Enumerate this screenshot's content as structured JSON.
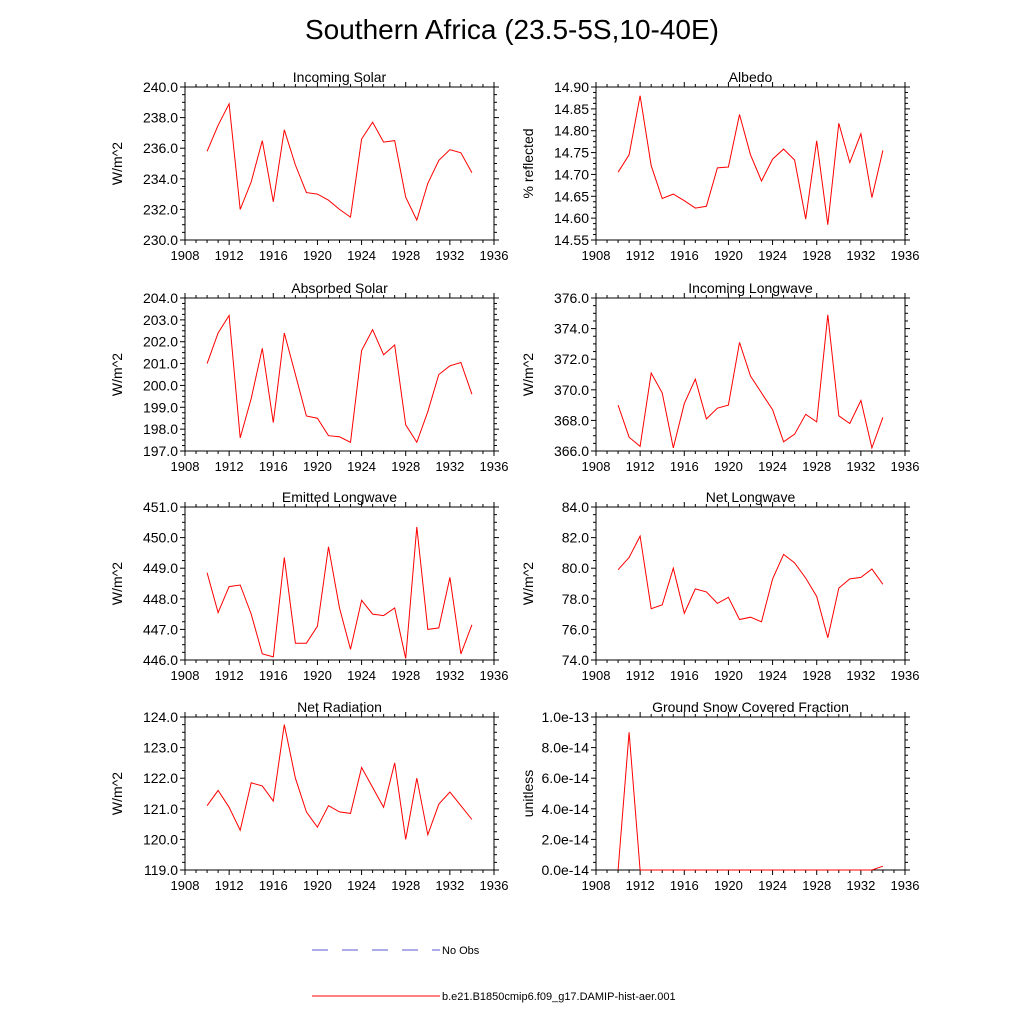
{
  "title": "Southern Africa (23.5-5S,10-40E)",
  "colors": {
    "model_line": "#ff0000",
    "obs_line": "#5a5ad2",
    "axis": "#000000"
  },
  "legend": {
    "obs_label": "No Obs",
    "model_label": "b.e21.B1850cmip6.f09_g17.DAMIP-hist-aer.001"
  },
  "chart_data": [
    {
      "type": "line",
      "title": "Incoming Solar",
      "ylabel": "W/m^2",
      "xlim": [
        1908,
        1936
      ],
      "ylim": [
        230,
        240
      ],
      "xticks": [
        1908,
        1912,
        1916,
        1920,
        1924,
        1928,
        1932,
        1936
      ],
      "yticks": [
        "230.0",
        "232.0",
        "234.0",
        "236.0",
        "238.0",
        "240.0"
      ],
      "x": [
        1910,
        1911,
        1912,
        1913,
        1914,
        1915,
        1916,
        1917,
        1918,
        1919,
        1920,
        1921,
        1922,
        1923,
        1924,
        1925,
        1926,
        1927,
        1928,
        1929,
        1930,
        1931,
        1932,
        1933,
        1934
      ],
      "y": [
        235.8,
        237.5,
        238.9,
        232.0,
        233.8,
        236.5,
        232.5,
        237.2,
        234.9,
        233.1,
        233.0,
        232.6,
        232.0,
        231.5,
        236.6,
        237.7,
        236.4,
        236.5,
        232.8,
        231.3,
        233.7,
        235.2,
        235.9,
        235.7,
        234.4
      ]
    },
    {
      "type": "line",
      "title": "Albedo",
      "ylabel": "% reflected",
      "xlim": [
        1908,
        1936
      ],
      "ylim": [
        14.55,
        14.9
      ],
      "xticks": [
        1908,
        1912,
        1916,
        1920,
        1924,
        1928,
        1932,
        1936
      ],
      "yticks": [
        "14.55",
        "14.60",
        "14.65",
        "14.70",
        "14.75",
        "14.80",
        "14.85",
        "14.90"
      ],
      "x": [
        1910,
        1911,
        1912,
        1913,
        1914,
        1915,
        1916,
        1917,
        1918,
        1919,
        1920,
        1921,
        1922,
        1923,
        1924,
        1925,
        1926,
        1927,
        1928,
        1929,
        1930,
        1931,
        1932,
        1933,
        1934
      ],
      "y": [
        14.705,
        14.745,
        14.88,
        14.72,
        14.645,
        14.655,
        14.64,
        14.623,
        14.627,
        14.715,
        14.717,
        14.837,
        14.745,
        14.685,
        14.735,
        14.758,
        14.733,
        14.598,
        14.777,
        14.585,
        14.817,
        14.727,
        14.793,
        14.647,
        14.755
      ]
    },
    {
      "type": "line",
      "title": "Absorbed Solar",
      "ylabel": "W/m^2",
      "xlim": [
        1908,
        1936
      ],
      "ylim": [
        197,
        204
      ],
      "xticks": [
        1908,
        1912,
        1916,
        1920,
        1924,
        1928,
        1932,
        1936
      ],
      "yticks": [
        "197.0",
        "198.0",
        "199.0",
        "200.0",
        "201.0",
        "202.0",
        "203.0",
        "204.0"
      ],
      "x": [
        1910,
        1911,
        1912,
        1913,
        1914,
        1915,
        1916,
        1917,
        1918,
        1919,
        1920,
        1921,
        1922,
        1923,
        1924,
        1925,
        1926,
        1927,
        1928,
        1929,
        1930,
        1931,
        1932,
        1933,
        1934
      ],
      "y": [
        201.0,
        202.4,
        203.2,
        197.6,
        199.4,
        201.7,
        198.3,
        202.4,
        200.5,
        198.6,
        198.5,
        197.7,
        197.65,
        197.4,
        201.6,
        202.55,
        201.4,
        201.85,
        198.2,
        197.4,
        198.8,
        200.5,
        200.9,
        201.05,
        199.6
      ]
    },
    {
      "type": "line",
      "title": "Incoming Longwave",
      "ylabel": "W/m^2",
      "xlim": [
        1908,
        1936
      ],
      "ylim": [
        366,
        376
      ],
      "xticks": [
        1908,
        1912,
        1916,
        1920,
        1924,
        1928,
        1932,
        1936
      ],
      "yticks": [
        "366.0",
        "368.0",
        "370.0",
        "372.0",
        "374.0",
        "376.0"
      ],
      "x": [
        1910,
        1911,
        1912,
        1913,
        1914,
        1915,
        1916,
        1917,
        1918,
        1919,
        1920,
        1921,
        1922,
        1923,
        1924,
        1925,
        1926,
        1927,
        1928,
        1929,
        1930,
        1931,
        1932,
        1933,
        1934
      ],
      "y": [
        369.0,
        366.9,
        366.3,
        371.1,
        369.8,
        366.2,
        369.1,
        370.7,
        368.1,
        368.8,
        369.0,
        373.1,
        370.9,
        369.8,
        368.7,
        366.6,
        367.1,
        368.4,
        367.9,
        374.9,
        368.3,
        367.8,
        369.3,
        366.2,
        368.2
      ]
    },
    {
      "type": "line",
      "title": "Emitted Longwave",
      "ylabel": "W/m^2",
      "xlim": [
        1908,
        1936
      ],
      "ylim": [
        446,
        451
      ],
      "xticks": [
        1908,
        1912,
        1916,
        1920,
        1924,
        1928,
        1932,
        1936
      ],
      "yticks": [
        "446.0",
        "447.0",
        "448.0",
        "449.0",
        "450.0",
        "451.0"
      ],
      "x": [
        1910,
        1911,
        1912,
        1913,
        1914,
        1915,
        1916,
        1917,
        1918,
        1919,
        1920,
        1921,
        1922,
        1923,
        1924,
        1925,
        1926,
        1927,
        1928,
        1929,
        1930,
        1931,
        1932,
        1933,
        1934
      ],
      "y": [
        448.85,
        447.55,
        448.4,
        448.45,
        447.5,
        446.2,
        446.1,
        449.35,
        446.55,
        446.55,
        447.1,
        449.7,
        447.7,
        446.35,
        447.95,
        447.5,
        447.45,
        447.7,
        446.05,
        450.35,
        447.0,
        447.05,
        448.7,
        446.2,
        447.15
      ]
    },
    {
      "type": "line",
      "title": "Net Longwave",
      "ylabel": "W/m^2",
      "xlim": [
        1908,
        1936
      ],
      "ylim": [
        74,
        84
      ],
      "xticks": [
        1908,
        1912,
        1916,
        1920,
        1924,
        1928,
        1932,
        1936
      ],
      "yticks": [
        "74.0",
        "76.0",
        "78.0",
        "80.0",
        "82.0",
        "84.0"
      ],
      "x": [
        1910,
        1911,
        1912,
        1913,
        1914,
        1915,
        1916,
        1917,
        1918,
        1919,
        1920,
        1921,
        1922,
        1923,
        1924,
        1925,
        1926,
        1927,
        1928,
        1929,
        1930,
        1931,
        1932,
        1933,
        1934
      ],
      "y": [
        79.9,
        80.7,
        82.1,
        77.35,
        77.6,
        80.0,
        77.05,
        78.65,
        78.45,
        77.7,
        78.1,
        76.65,
        76.8,
        76.5,
        79.3,
        80.9,
        80.35,
        79.35,
        78.15,
        75.45,
        78.7,
        79.3,
        79.4,
        79.95,
        78.95
      ]
    },
    {
      "type": "line",
      "title": "Net Radiation",
      "ylabel": "W/m^2",
      "xlim": [
        1908,
        1936
      ],
      "ylim": [
        119,
        124
      ],
      "xticks": [
        1908,
        1912,
        1916,
        1920,
        1924,
        1928,
        1932,
        1936
      ],
      "yticks": [
        "119.0",
        "120.0",
        "121.0",
        "122.0",
        "123.0",
        "124.0"
      ],
      "x": [
        1910,
        1911,
        1912,
        1913,
        1914,
        1915,
        1916,
        1917,
        1918,
        1919,
        1920,
        1921,
        1922,
        1923,
        1924,
        1925,
        1926,
        1927,
        1928,
        1929,
        1930,
        1931,
        1932,
        1933,
        1934
      ],
      "y": [
        121.1,
        121.6,
        121.05,
        120.3,
        121.85,
        121.75,
        121.25,
        123.75,
        122.0,
        120.9,
        120.4,
        121.1,
        120.9,
        120.85,
        122.35,
        121.7,
        121.05,
        122.5,
        120.0,
        122.0,
        120.15,
        121.15,
        121.55,
        121.1,
        120.65
      ]
    },
    {
      "type": "line",
      "title": "Ground Snow Covered Fraction",
      "ylabel": "unitless",
      "xlim": [
        1908,
        1936
      ],
      "ylim": [
        0,
        1e-13
      ],
      "xticks": [
        1908,
        1912,
        1916,
        1920,
        1924,
        1928,
        1932,
        1936
      ],
      "yticks": [
        "0.0e-14",
        "2.0e-14",
        "4.0e-14",
        "6.0e-14",
        "8.0e-14",
        "1.0e-13"
      ],
      "x": [
        1910,
        1911,
        1912,
        1913,
        1914,
        1915,
        1916,
        1917,
        1918,
        1919,
        1920,
        1921,
        1922,
        1923,
        1924,
        1925,
        1926,
        1927,
        1928,
        1929,
        1930,
        1931,
        1932,
        1933,
        1934
      ],
      "y": [
        0,
        9e-14,
        0,
        0,
        0,
        0,
        0,
        0,
        0,
        0,
        0,
        0,
        0,
        0,
        0,
        0,
        0,
        0,
        0,
        0,
        0,
        0,
        0,
        0,
        2.5e-15
      ]
    }
  ]
}
